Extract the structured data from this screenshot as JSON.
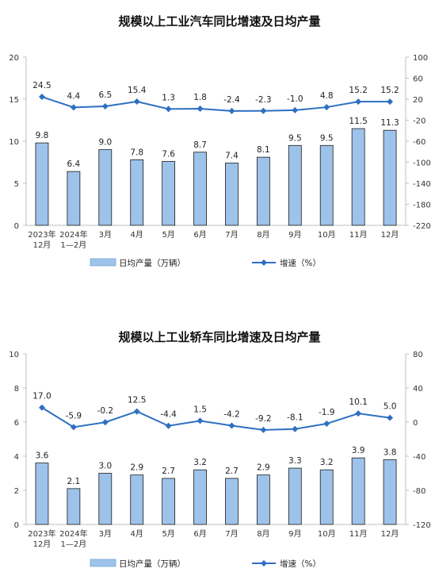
{
  "colors": {
    "bar_fill": "#9dc3ea",
    "bar_stroke": "#1b1b1b",
    "line": "#2e6fc2",
    "axis": "#bfbfbf"
  },
  "chart_data": [
    {
      "type": "bar",
      "title": "规模以上工业汽车同比增速及日均产量",
      "categories": [
        [
          "2023年",
          "12月"
        ],
        [
          "2024年",
          "1—2月"
        ],
        [
          "3月"
        ],
        [
          "4月"
        ],
        [
          "5月"
        ],
        [
          "6月"
        ],
        [
          "7月"
        ],
        [
          "8月"
        ],
        [
          "9月"
        ],
        [
          "10月"
        ],
        [
          "11月"
        ],
        [
          "12月"
        ]
      ],
      "left_axis": {
        "min": 0,
        "max": 20,
        "ticks": [
          0,
          5,
          10,
          15,
          20
        ]
      },
      "right_axis": {
        "min": -220,
        "max": 100,
        "ticks": [
          100,
          60,
          20,
          -20,
          -60,
          -100,
          -140,
          -180,
          -220
        ]
      },
      "series": [
        {
          "name": "日均产量（万辆）",
          "kind": "bar",
          "axis": "left",
          "values": [
            9.8,
            6.4,
            9.0,
            7.8,
            7.6,
            8.7,
            7.4,
            8.1,
            9.5,
            9.5,
            11.5,
            11.3
          ],
          "labels": [
            "9.8",
            "6.4",
            "9.0",
            "7.8",
            "7.6",
            "8.7",
            "7.4",
            "8.1",
            "9.5",
            "9.5",
            "11.5",
            "11.3"
          ]
        },
        {
          "name": "增速（%）",
          "kind": "line",
          "axis": "right",
          "values": [
            24.5,
            4.4,
            6.5,
            15.4,
            1.3,
            1.8,
            -2.4,
            -2.3,
            -1.0,
            4.8,
            15.2,
            15.2
          ],
          "labels": [
            "24.5",
            "4.4",
            "6.5",
            "15.4",
            "1.3",
            "1.8",
            "-2.4",
            "-2.3",
            "-1.0",
            "4.8",
            "15.2",
            "15.2"
          ]
        }
      ],
      "legend": {
        "bar": "日均产量（万辆）",
        "line": "增速（%）"
      }
    },
    {
      "type": "bar",
      "title": "规模以上工业轿车同比增速及日均产量",
      "categories": [
        [
          "2023年",
          "12月"
        ],
        [
          "2024年",
          "1—2月"
        ],
        [
          "3月"
        ],
        [
          "4月"
        ],
        [
          "5月"
        ],
        [
          "6月"
        ],
        [
          "7月"
        ],
        [
          "8月"
        ],
        [
          "9月"
        ],
        [
          "10月"
        ],
        [
          "11月"
        ],
        [
          "12月"
        ]
      ],
      "left_axis": {
        "min": 0,
        "max": 10,
        "ticks": [
          0,
          2,
          4,
          6,
          8,
          10
        ]
      },
      "right_axis": {
        "min": -120,
        "max": 80,
        "ticks": [
          80,
          40,
          0,
          -40,
          -80,
          -120
        ]
      },
      "series": [
        {
          "name": "日均产量（万辆）",
          "kind": "bar",
          "axis": "left",
          "values": [
            3.6,
            2.1,
            3.0,
            2.9,
            2.7,
            3.2,
            2.7,
            2.9,
            3.3,
            3.2,
            3.9,
            3.8
          ],
          "labels": [
            "3.6",
            "2.1",
            "3.0",
            "2.9",
            "2.7",
            "3.2",
            "2.7",
            "2.9",
            "3.3",
            "3.2",
            "3.9",
            "3.8"
          ]
        },
        {
          "name": "增速（%）",
          "kind": "line",
          "axis": "right",
          "values": [
            17.0,
            -5.9,
            -0.2,
            12.5,
            -4.4,
            1.5,
            -4.2,
            -9.2,
            -8.1,
            -1.9,
            10.1,
            5.0
          ],
          "labels": [
            "17.0",
            "-5.9",
            "-0.2",
            "12.5",
            "-4.4",
            "1.5",
            "-4.2",
            "-9.2",
            "-8.1",
            "-1.9",
            "10.1",
            "5.0"
          ]
        }
      ],
      "legend": {
        "bar": "日均产量（万辆）",
        "line": "增速（%）"
      }
    }
  ]
}
